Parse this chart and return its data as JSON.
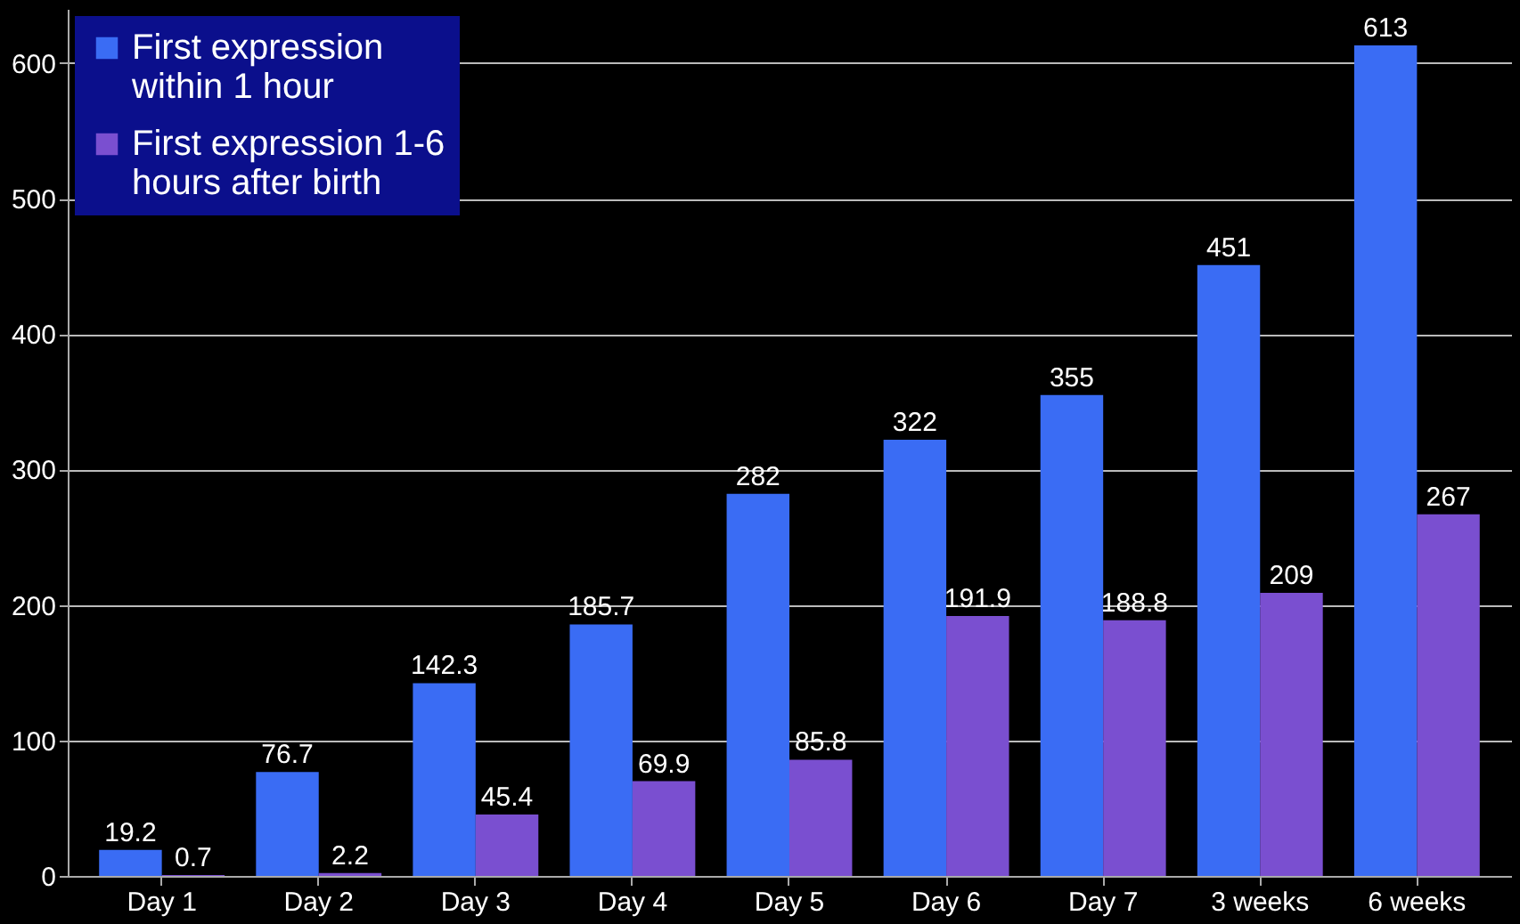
{
  "chart_data": {
    "type": "bar",
    "categories": [
      "Day 1",
      "Day 2",
      "Day 3",
      "Day 4",
      "Day 5",
      "Day 6",
      "Day 7",
      "3 weeks",
      "6 weeks"
    ],
    "series": [
      {
        "name": "First expression within 1 hour",
        "color": "#3a6cf4",
        "values": [
          19.2,
          76.7,
          142.3,
          185.7,
          282,
          322,
          355,
          451,
          613
        ]
      },
      {
        "name": "First expression 1-6 hours after birth",
        "color": "#7a4fd0",
        "values": [
          0.7,
          2.2,
          45.4,
          69.9,
          85.8,
          191.9,
          188.8,
          209,
          267
        ]
      }
    ],
    "ylim": [
      0,
      640
    ],
    "yticks": [
      0,
      100,
      200,
      300,
      400,
      500,
      600
    ],
    "grid": "y",
    "legend": "top left",
    "data_labels": true
  }
}
